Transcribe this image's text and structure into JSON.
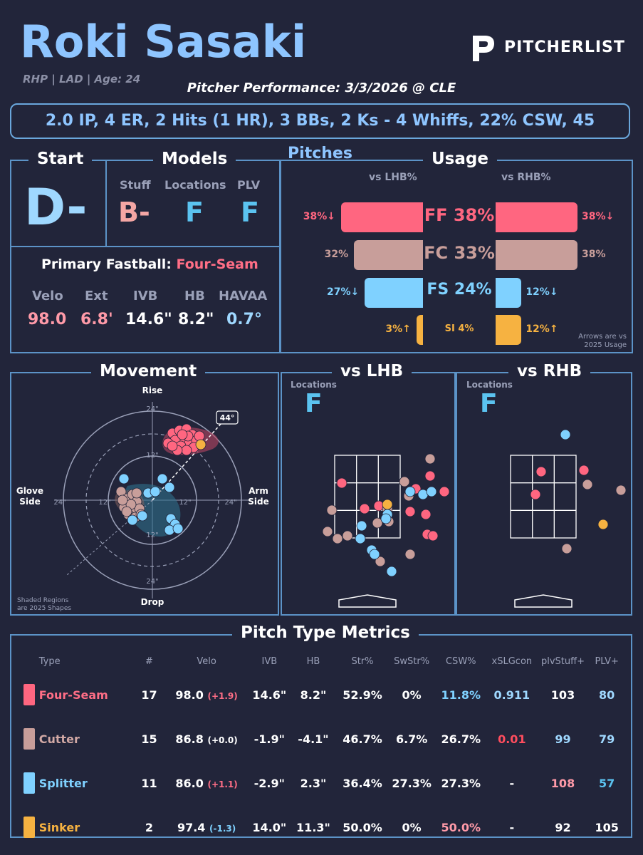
{
  "header": {
    "name": "Roki Sasaki",
    "info": "RHP | LAD | Age: 24",
    "performance": "Pitcher Performance: 3/3/2026 @ CLE",
    "brand": "PITCHERLIST",
    "summary": "2.0 IP, 4 ER, 2 Hits (1 HR), 3 BBs, 2 Ks - 4 Whiffs, 22% CSW, 45 Pitches"
  },
  "start": {
    "title": "Start",
    "grade": "D-"
  },
  "models": {
    "title": "Models",
    "items": [
      {
        "label": "Stuff",
        "grade": "B-"
      },
      {
        "label": "Locations",
        "grade": "F"
      },
      {
        "label": "PLV",
        "grade": "F"
      }
    ]
  },
  "primary": {
    "label": "Primary Fastball:",
    "pitch": "Four-Seam",
    "stats": [
      {
        "label": "Velo",
        "value": "98.0"
      },
      {
        "label": "Ext",
        "value": "6.8'"
      },
      {
        "label": "IVB",
        "value": "14.6\""
      },
      {
        "label": "HB",
        "value": "8.2\""
      },
      {
        "label": "HAVAA",
        "value": "0.7°"
      }
    ]
  },
  "usage": {
    "title": "Usage",
    "lhb_header": "vs LHB%",
    "rhb_header": "vs RHB%",
    "note_line1": "Arrows are vs",
    "note_line2": "2025 Usage",
    "rows": [
      {
        "pitch": "FF 38%",
        "lhb_label": "38%↓",
        "rhb_label": "38%↓",
        "lhb": 38,
        "rhb": 38,
        "color": "#ff6680"
      },
      {
        "pitch": "FC 33%",
        "lhb_label": "32%",
        "rhb_label": "38%",
        "lhb": 32,
        "rhb": 38,
        "color": "#c89e9a"
      },
      {
        "pitch": "FS 24%",
        "lhb_label": "27%↓",
        "rhb_label": "12%↓",
        "lhb": 27,
        "rhb": 12,
        "color": "#7fd1ff"
      },
      {
        "pitch": "SI 4%",
        "lhb_label": "3%↑",
        "rhb_label": "12%↑",
        "lhb": 3,
        "rhb": 12,
        "color": "#f6b241"
      }
    ]
  },
  "movement": {
    "title": "Movement",
    "rise": "Rise",
    "drop": "Drop",
    "glove_line1": "Glove",
    "glove_line2": "Side",
    "arm_line1": "Arm",
    "arm_line2": "Side",
    "arm_angle": "44°",
    "ring_labels": [
      "24\"",
      "12\"",
      "12\"",
      "24\"",
      "24\"",
      "12\"",
      "12\"",
      "24\""
    ],
    "note_line1": "Shaded Regions",
    "note_line2": "are 2025 Shapes"
  },
  "vs_lhb": {
    "title": "vs LHB",
    "label": "Locations",
    "grade": "F"
  },
  "vs_rhb": {
    "title": "vs RHB",
    "label": "Locations",
    "grade": "F"
  },
  "metrics": {
    "title": "Pitch Type Metrics",
    "headers": [
      "Type",
      "#",
      "Velo",
      "IVB",
      "HB",
      "Str%",
      "SwStr%",
      "CSW%",
      "xSLGcon",
      "plvStuff+",
      "PLV+"
    ],
    "rows": [
      {
        "type": "Four-Seam",
        "color": "#ff6680",
        "n": "17",
        "velo": "98.0",
        "diff": "(+1.9)",
        "ivb": "14.6\"",
        "hb": "8.2\"",
        "str": "52.9%",
        "swstr": "0%",
        "csw": "11.8%",
        "xslg": "0.911",
        "stuff": "103",
        "plv": "80"
      },
      {
        "type": "Cutter",
        "color": "#c89e9a",
        "n": "15",
        "velo": "86.8",
        "diff": "(+0.0)",
        "ivb": "-1.9\"",
        "hb": "-4.1\"",
        "str": "46.7%",
        "swstr": "6.7%",
        "csw": "26.7%",
        "xslg": "0.01",
        "stuff": "99",
        "plv": "79"
      },
      {
        "type": "Splitter",
        "color": "#7fd1ff",
        "n": "11",
        "velo": "86.0",
        "diff": "(+1.1)",
        "ivb": "-2.9\"",
        "hb": "2.3\"",
        "str": "36.4%",
        "swstr": "27.3%",
        "csw": "27.3%",
        "xslg": "-",
        "stuff": "108",
        "plv": "57"
      },
      {
        "type": "Sinker",
        "color": "#f6b241",
        "n": "2",
        "velo": "97.4",
        "diff": "(-1.3)",
        "ivb": "14.0\"",
        "hb": "11.3\"",
        "str": "50.0%",
        "swstr": "0%",
        "csw": "50.0%",
        "xslg": "-",
        "stuff": "92",
        "plv": "105"
      }
    ]
  }
}
